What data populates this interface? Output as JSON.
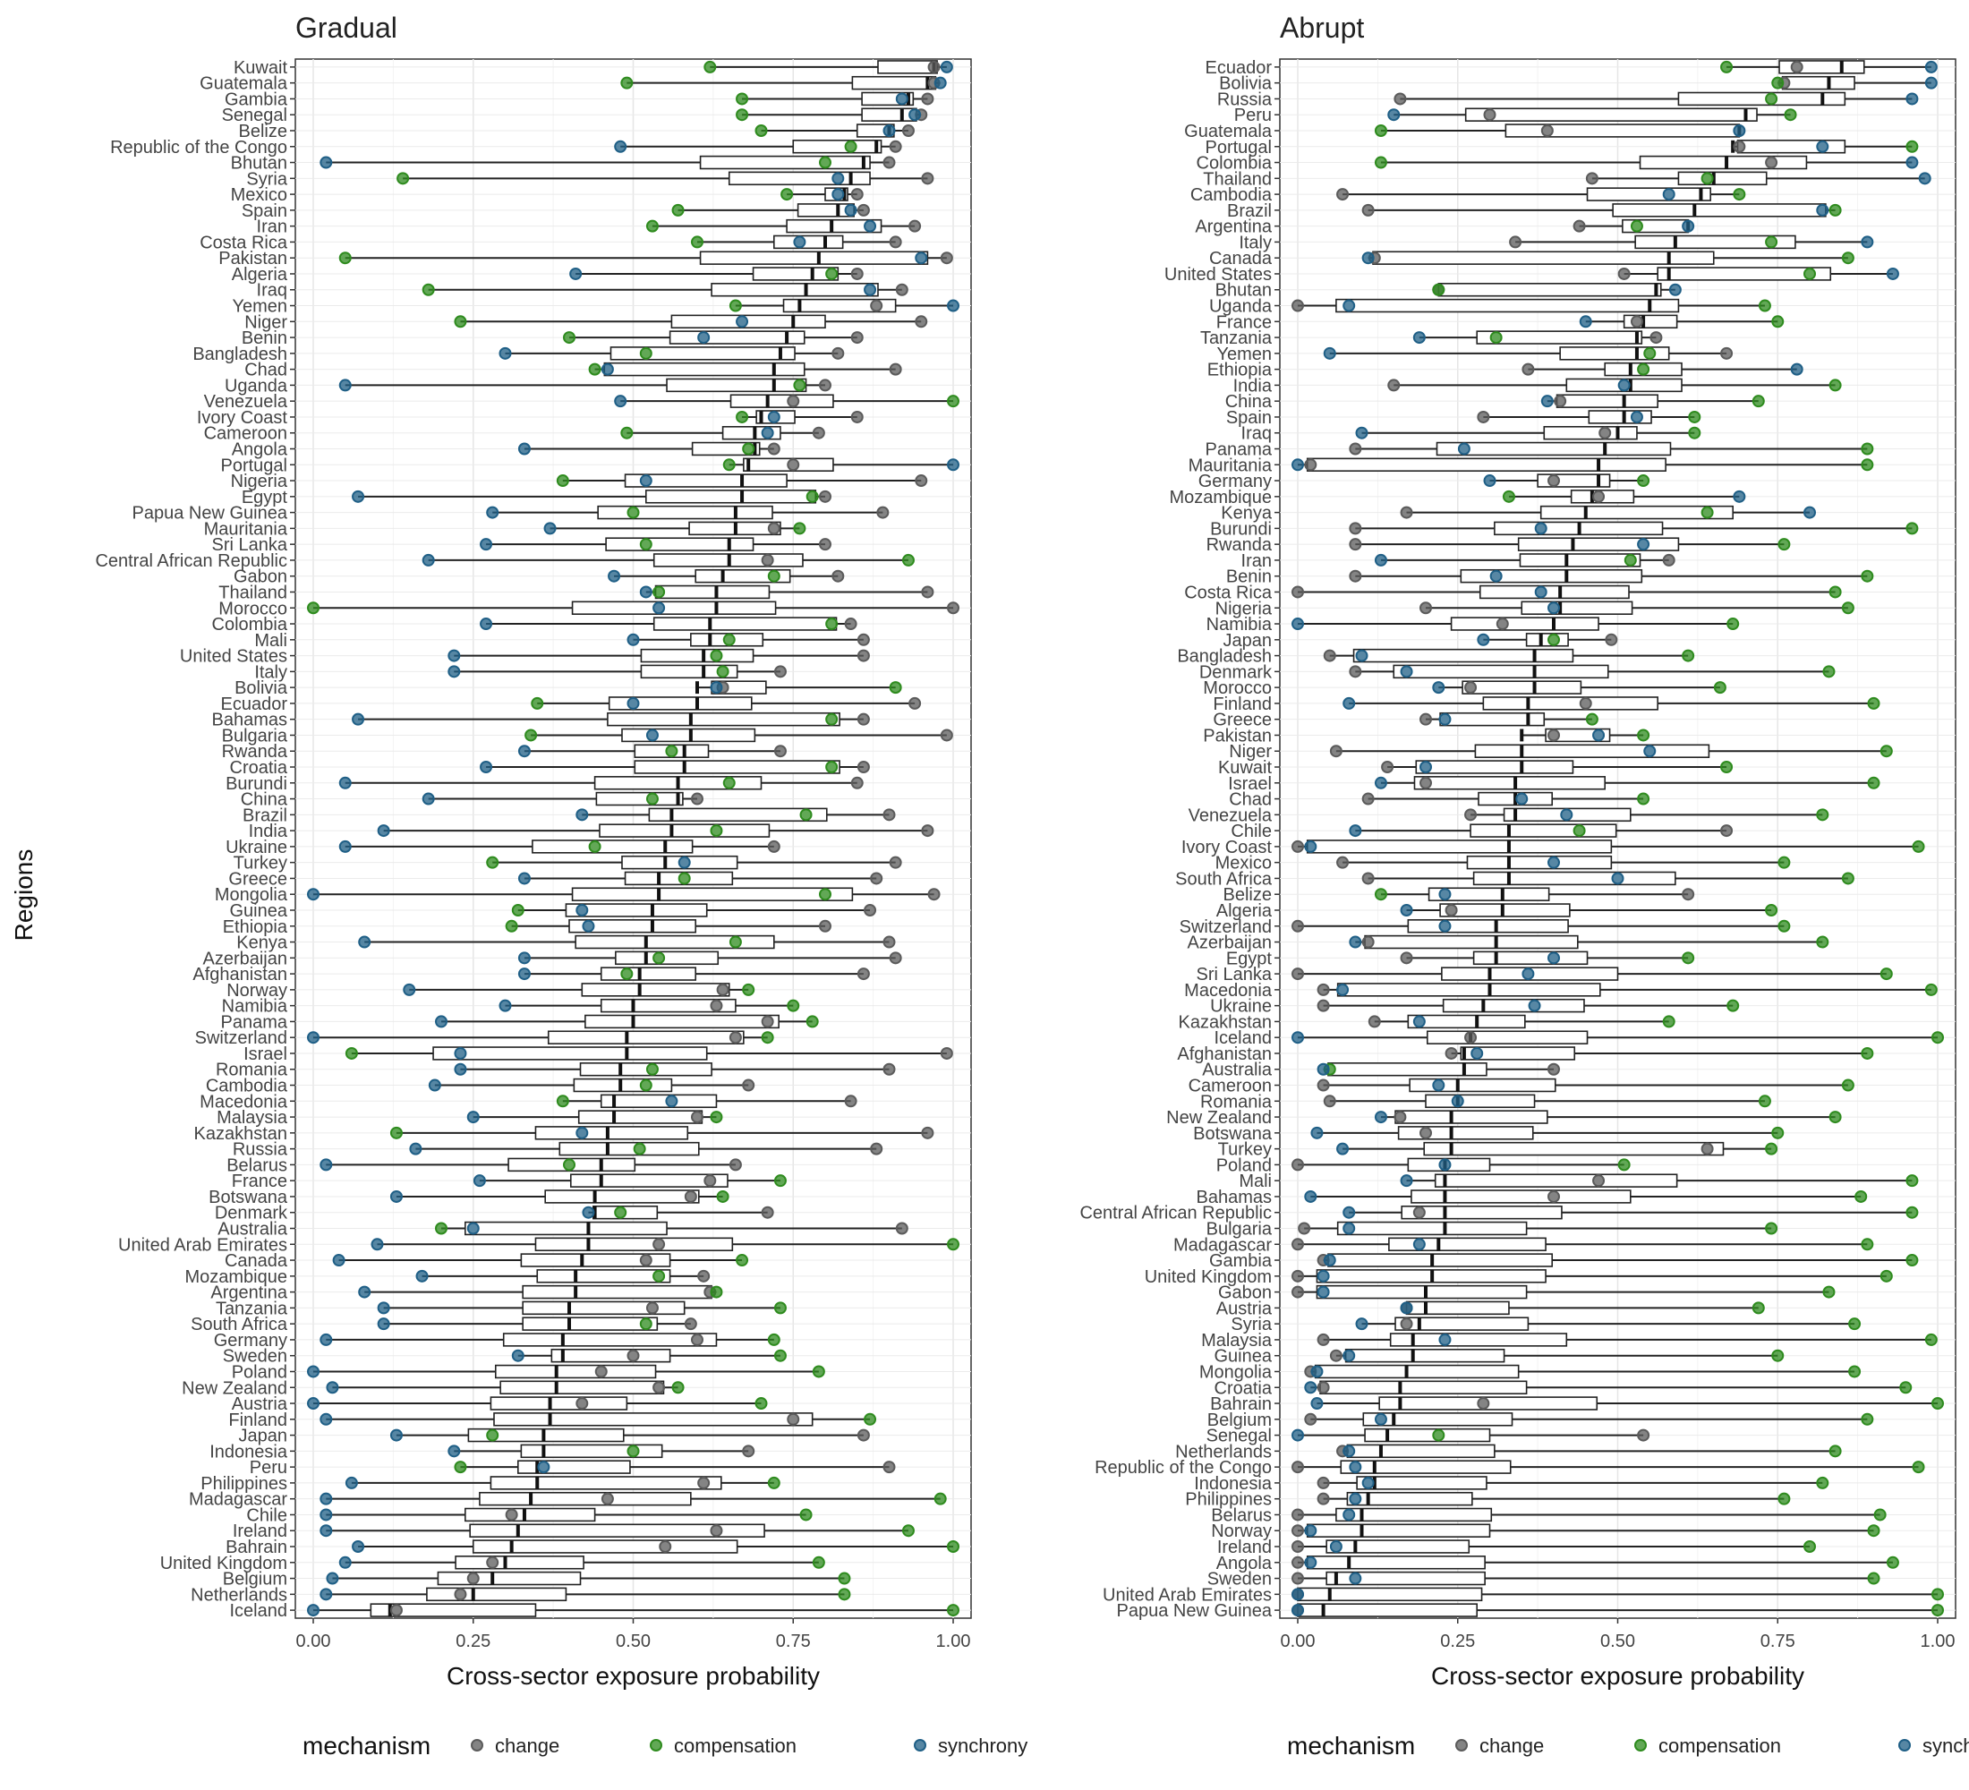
{
  "legend": {
    "title": "mechanism",
    "entries": [
      {
        "name": "change",
        "color": "#5b5b5b"
      },
      {
        "name": "compensation",
        "color": "#2e8b1e"
      },
      {
        "name": "synchrony",
        "color": "#1f5f86"
      }
    ]
  },
  "y_axis_label": "Regions",
  "chart_data": [
    {
      "type": "boxplot",
      "title": "Gradual",
      "xlabel": "Cross-sector exposure probability",
      "ylabel": "Regions",
      "xlim": [
        0,
        1
      ],
      "xticks": [
        "0.00",
        "0.25",
        "0.50",
        "0.75",
        "1.00"
      ],
      "grid": true,
      "legend": "bottom",
      "categories": [
        "Kuwait",
        "Guatemala",
        "Gambia",
        "Senegal",
        "Belize",
        "Republic of the Congo",
        "Bhutan",
        "Syria",
        "Mexico",
        "Spain",
        "Iran",
        "Costa Rica",
        "Pakistan",
        "Algeria",
        "Iraq",
        "Yemen",
        "Niger",
        "Benin",
        "Bangladesh",
        "Chad",
        "Uganda",
        "Venezuela",
        "Ivory Coast",
        "Cameroon",
        "Angola",
        "Portugal",
        "Nigeria",
        "Egypt",
        "Papua New Guinea",
        "Mauritania",
        "Sri Lanka",
        "Central African Republic",
        "Gabon",
        "Thailand",
        "Morocco",
        "Colombia",
        "Mali",
        "United States",
        "Italy",
        "Bolivia",
        "Ecuador",
        "Bahamas",
        "Bulgaria",
        "Rwanda",
        "Croatia",
        "Burundi",
        "China",
        "Brazil",
        "India",
        "Ukraine",
        "Turkey",
        "Greece",
        "Mongolia",
        "Guinea",
        "Ethiopia",
        "Kenya",
        "Azerbaijan",
        "Afghanistan",
        "Norway",
        "Namibia",
        "Panama",
        "Switzerland",
        "Israel",
        "Romania",
        "Cambodia",
        "Macedonia",
        "Malaysia",
        "Kazakhstan",
        "Russia",
        "Belarus",
        "France",
        "Botswana",
        "Denmark",
        "Australia",
        "United Arab Emirates",
        "Canada",
        "Mozambique",
        "Argentina",
        "Tanzania",
        "South Africa",
        "Germany",
        "Sweden",
        "Poland",
        "New Zealand",
        "Austria",
        "Finland",
        "Japan",
        "Indonesia",
        "Peru",
        "Philippines",
        "Madagascar",
        "Chile",
        "Ireland",
        "Bahrain",
        "United Kingdom",
        "Belgium",
        "Netherlands",
        "Iceland"
      ],
      "medians": [
        0.97,
        0.96,
        0.93,
        0.92,
        0.9,
        0.88,
        0.86,
        0.84,
        0.83,
        0.82,
        0.81,
        0.8,
        0.79,
        0.78,
        0.77,
        0.76,
        0.75,
        0.74,
        0.73,
        0.72,
        0.72,
        0.71,
        0.7,
        0.69,
        0.69,
        0.68,
        0.67,
        0.67,
        0.66,
        0.66,
        0.65,
        0.65,
        0.64,
        0.63,
        0.63,
        0.62,
        0.62,
        0.61,
        0.61,
        0.6,
        0.6,
        0.59,
        0.59,
        0.58,
        0.58,
        0.57,
        0.57,
        0.56,
        0.56,
        0.55,
        0.55,
        0.54,
        0.54,
        0.53,
        0.53,
        0.52,
        0.52,
        0.51,
        0.51,
        0.5,
        0.5,
        0.49,
        0.49,
        0.48,
        0.48,
        0.47,
        0.47,
        0.46,
        0.46,
        0.45,
        0.45,
        0.44,
        0.44,
        0.43,
        0.43,
        0.42,
        0.41,
        0.41,
        0.4,
        0.4,
        0.39,
        0.39,
        0.38,
        0.38,
        0.37,
        0.37,
        0.36,
        0.36,
        0.35,
        0.35,
        0.34,
        0.33,
        0.32,
        0.31,
        0.3,
        0.28,
        0.25,
        0.12
      ],
      "series": [
        {
          "name": "change",
          "values": [
            0.97,
            0.97,
            0.96,
            0.95,
            0.93,
            0.91,
            0.9,
            0.96,
            0.85,
            0.86,
            0.94,
            0.91,
            0.99,
            0.85,
            0.92,
            0.88,
            0.95,
            0.85,
            0.82,
            0.91,
            0.8,
            0.75,
            0.85,
            0.79,
            0.72,
            0.75,
            0.95,
            0.8,
            0.89,
            0.72,
            0.8,
            0.71,
            0.82,
            0.96,
            1.0,
            0.84,
            0.86,
            0.86,
            0.73,
            0.64,
            0.94,
            0.86,
            0.99,
            0.73,
            0.86,
            0.85,
            0.6,
            0.9,
            0.96,
            0.72,
            0.91,
            0.88,
            0.97,
            0.87,
            0.8,
            0.9,
            0.91,
            0.86,
            0.64,
            0.63,
            0.71,
            0.66,
            0.99,
            0.9,
            0.68,
            0.84,
            0.6,
            0.96,
            0.88,
            0.66,
            0.62,
            0.59,
            0.71,
            0.92,
            0.54,
            0.52,
            0.61,
            0.62,
            0.53,
            0.59,
            0.6,
            0.5,
            0.45,
            0.54,
            0.42,
            0.75,
            0.86,
            0.68,
            0.9,
            0.61,
            0.46,
            0.31,
            0.63,
            0.55,
            0.28,
            0.25,
            0.23,
            0.13
          ]
        },
        {
          "name": "compensation",
          "values": [
            0.62,
            0.49,
            0.67,
            0.67,
            0.7,
            0.84,
            0.8,
            0.14,
            0.74,
            0.57,
            0.53,
            0.6,
            0.05,
            0.81,
            0.18,
            0.66,
            0.23,
            0.4,
            0.52,
            0.44,
            0.76,
            1.0,
            0.67,
            0.49,
            0.68,
            0.65,
            0.39,
            0.78,
            0.5,
            0.76,
            0.52,
            0.93,
            0.72,
            0.54,
            0.0,
            0.81,
            0.65,
            0.63,
            0.64,
            0.91,
            0.35,
            0.81,
            0.34,
            0.56,
            0.81,
            0.65,
            0.53,
            0.77,
            0.63,
            0.44,
            0.28,
            0.58,
            0.8,
            0.32,
            0.31,
            0.66,
            0.54,
            0.49,
            0.68,
            0.75,
            0.78,
            0.71,
            0.06,
            0.53,
            0.52,
            0.39,
            0.63,
            0.13,
            0.51,
            0.4,
            0.73,
            0.64,
            0.48,
            0.2,
            1.0,
            0.67,
            0.54,
            0.63,
            0.73,
            0.52,
            0.72,
            0.73,
            0.79,
            0.57,
            0.7,
            0.87,
            0.28,
            0.5,
            0.23,
            0.72,
            0.98,
            0.77,
            0.93,
            1.0,
            0.79,
            0.83,
            0.83,
            1.0
          ]
        },
        {
          "name": "synchrony",
          "values": [
            0.99,
            0.98,
            0.92,
            0.94,
            0.9,
            0.48,
            0.02,
            0.82,
            0.82,
            0.84,
            0.87,
            0.76,
            0.95,
            0.41,
            0.87,
            1.0,
            0.67,
            0.61,
            0.3,
            0.46,
            0.05,
            0.48,
            0.72,
            0.71,
            0.33,
            1.0,
            0.52,
            0.07,
            0.28,
            0.37,
            0.27,
            0.18,
            0.47,
            0.52,
            0.54,
            0.27,
            0.5,
            0.22,
            0.22,
            0.63,
            0.5,
            0.07,
            0.53,
            0.33,
            0.27,
            0.05,
            0.18,
            0.42,
            0.11,
            0.05,
            0.58,
            0.33,
            0.0,
            0.42,
            0.43,
            0.08,
            0.33,
            0.33,
            0.15,
            0.3,
            0.2,
            0.0,
            0.23,
            0.23,
            0.19,
            0.56,
            0.25,
            0.42,
            0.16,
            0.02,
            0.26,
            0.13,
            0.43,
            0.25,
            0.1,
            0.04,
            0.17,
            0.08,
            0.11,
            0.11,
            0.02,
            0.32,
            0.0,
            0.03,
            0.0,
            0.02,
            0.13,
            0.22,
            0.36,
            0.06,
            0.02,
            0.02,
            0.02,
            0.07,
            0.05,
            0.03,
            0.02,
            0.0
          ]
        }
      ]
    },
    {
      "type": "boxplot",
      "title": "Abrupt",
      "xlabel": "Cross-sector exposure probability",
      "ylabel": "",
      "xlim": [
        0,
        1
      ],
      "xticks": [
        "0.00",
        "0.25",
        "0.50",
        "0.75",
        "1.00"
      ],
      "grid": true,
      "legend": "bottom",
      "categories": [
        "Ecuador",
        "Bolivia",
        "Russia",
        "Peru",
        "Guatemala",
        "Portugal",
        "Colombia",
        "Thailand",
        "Cambodia",
        "Brazil",
        "Argentina",
        "Italy",
        "Canada",
        "United States",
        "Bhutan",
        "Uganda",
        "France",
        "Tanzania",
        "Yemen",
        "Ethiopia",
        "India",
        "China",
        "Spain",
        "Iraq",
        "Panama",
        "Mauritania",
        "Germany",
        "Mozambique",
        "Kenya",
        "Burundi",
        "Rwanda",
        "Iran",
        "Benin",
        "Costa Rica",
        "Nigeria",
        "Namibia",
        "Japan",
        "Bangladesh",
        "Denmark",
        "Morocco",
        "Finland",
        "Greece",
        "Pakistan",
        "Niger",
        "Kuwait",
        "Israel",
        "Chad",
        "Venezuela",
        "Chile",
        "Ivory Coast",
        "Mexico",
        "South Africa",
        "Belize",
        "Algeria",
        "Switzerland",
        "Azerbaijan",
        "Egypt",
        "Sri Lanka",
        "Macedonia",
        "Ukraine",
        "Kazakhstan",
        "Iceland",
        "Afghanistan",
        "Australia",
        "Cameroon",
        "Romania",
        "New Zealand",
        "Botswana",
        "Turkey",
        "Poland",
        "Mali",
        "Bahamas",
        "Central African Republic",
        "Bulgaria",
        "Madagascar",
        "Gambia",
        "United Kingdom",
        "Gabon",
        "Austria",
        "Syria",
        "Malaysia",
        "Guinea",
        "Mongolia",
        "Croatia",
        "Bahrain",
        "Belgium",
        "Senegal",
        "Netherlands",
        "Republic of the Congo",
        "Indonesia",
        "Philippines",
        "Belarus",
        "Norway",
        "Ireland",
        "Angola",
        "Sweden",
        "United Arab Emirates",
        "Papua New Guinea"
      ],
      "medians": [
        0.85,
        0.83,
        0.82,
        0.7,
        0.69,
        0.68,
        0.67,
        0.65,
        0.63,
        0.62,
        0.61,
        0.59,
        0.58,
        0.58,
        0.56,
        0.55,
        0.54,
        0.53,
        0.53,
        0.52,
        0.52,
        0.51,
        0.51,
        0.5,
        0.48,
        0.47,
        0.47,
        0.46,
        0.45,
        0.44,
        0.43,
        0.42,
        0.42,
        0.41,
        0.41,
        0.4,
        0.38,
        0.37,
        0.37,
        0.37,
        0.36,
        0.36,
        0.35,
        0.35,
        0.35,
        0.34,
        0.34,
        0.34,
        0.33,
        0.33,
        0.33,
        0.33,
        0.32,
        0.32,
        0.31,
        0.31,
        0.31,
        0.3,
        0.3,
        0.29,
        0.28,
        0.27,
        0.26,
        0.26,
        0.25,
        0.25,
        0.24,
        0.24,
        0.24,
        0.23,
        0.23,
        0.23,
        0.23,
        0.23,
        0.22,
        0.21,
        0.21,
        0.2,
        0.2,
        0.19,
        0.18,
        0.18,
        0.17,
        0.16,
        0.16,
        0.15,
        0.14,
        0.13,
        0.12,
        0.12,
        0.11,
        0.1,
        0.1,
        0.09,
        0.08,
        0.06,
        0.05,
        0.04
      ],
      "series": [
        {
          "name": "change",
          "values": [
            0.78,
            0.76,
            0.16,
            0.3,
            0.39,
            0.69,
            0.74,
            0.46,
            0.07,
            0.11,
            0.44,
            0.34,
            0.12,
            0.51,
            0.22,
            0.0,
            0.53,
            0.56,
            0.67,
            0.36,
            0.15,
            0.41,
            0.29,
            0.48,
            0.09,
            0.02,
            0.4,
            0.47,
            0.17,
            0.09,
            0.09,
            0.58,
            0.09,
            0.0,
            0.2,
            0.32,
            0.49,
            0.05,
            0.09,
            0.27,
            0.45,
            0.2,
            0.4,
            0.06,
            0.14,
            0.2,
            0.11,
            0.27,
            0.67,
            0.0,
            0.07,
            0.11,
            0.61,
            0.24,
            0.0,
            0.11,
            0.17,
            0.0,
            0.04,
            0.04,
            0.12,
            0.27,
            0.24,
            0.4,
            0.04,
            0.05,
            0.16,
            0.2,
            0.64,
            0.0,
            0.47,
            0.4,
            0.19,
            0.01,
            0.0,
            0.04,
            0.0,
            0.0,
            0.17,
            0.17,
            0.04,
            0.06,
            0.02,
            0.04,
            0.29,
            0.02,
            0.54,
            0.07,
            0.0,
            0.04,
            0.04,
            0.0,
            0.0,
            0.0,
            0.0,
            0.0,
            0.0,
            0.0
          ]
        },
        {
          "name": "compensation",
          "values": [
            0.67,
            0.75,
            0.74,
            0.77,
            0.13,
            0.96,
            0.13,
            0.64,
            0.69,
            0.84,
            0.53,
            0.74,
            0.86,
            0.8,
            0.22,
            0.73,
            0.75,
            0.31,
            0.55,
            0.54,
            0.84,
            0.72,
            0.62,
            0.62,
            0.89,
            0.89,
            0.54,
            0.33,
            0.64,
            0.96,
            0.76,
            0.52,
            0.89,
            0.84,
            0.86,
            0.68,
            0.4,
            0.61,
            0.83,
            0.66,
            0.9,
            0.46,
            0.54,
            0.92,
            0.67,
            0.9,
            0.54,
            0.82,
            0.44,
            0.97,
            0.76,
            0.86,
            0.13,
            0.74,
            0.76,
            0.82,
            0.61,
            0.92,
            0.99,
            0.68,
            0.58,
            1.0,
            0.89,
            0.05,
            0.86,
            0.73,
            0.84,
            0.75,
            0.74,
            0.51,
            0.96,
            0.88,
            0.96,
            0.74,
            0.89,
            0.96,
            0.92,
            0.83,
            0.72,
            0.87,
            0.99,
            0.75,
            0.87,
            0.95,
            1.0,
            0.89,
            0.22,
            0.84,
            0.97,
            0.82,
            0.76,
            0.91,
            0.9,
            0.8,
            0.93,
            0.9,
            1.0,
            1.0
          ]
        },
        {
          "name": "synchrony",
          "values": [
            0.99,
            0.99,
            0.96,
            0.15,
            0.69,
            0.82,
            0.96,
            0.98,
            0.58,
            0.82,
            0.61,
            0.89,
            0.11,
            0.93,
            0.59,
            0.08,
            0.45,
            0.19,
            0.05,
            0.78,
            0.51,
            0.39,
            0.53,
            0.1,
            0.26,
            0.0,
            0.3,
            0.69,
            0.8,
            0.38,
            0.54,
            0.13,
            0.31,
            0.38,
            0.4,
            0.0,
            0.29,
            0.1,
            0.17,
            0.22,
            0.08,
            0.23,
            0.47,
            0.55,
            0.2,
            0.13,
            0.35,
            0.42,
            0.09,
            0.02,
            0.4,
            0.5,
            0.23,
            0.17,
            0.23,
            0.09,
            0.4,
            0.36,
            0.07,
            0.37,
            0.19,
            0.0,
            0.28,
            0.04,
            0.22,
            0.25,
            0.13,
            0.03,
            0.07,
            0.23,
            0.17,
            0.02,
            0.08,
            0.08,
            0.19,
            0.05,
            0.04,
            0.04,
            0.17,
            0.1,
            0.23,
            0.08,
            0.03,
            0.02,
            0.03,
            0.13,
            0.0,
            0.08,
            0.09,
            0.11,
            0.09,
            0.08,
            0.02,
            0.06,
            0.02,
            0.09,
            0.0,
            0.0
          ]
        }
      ]
    }
  ]
}
